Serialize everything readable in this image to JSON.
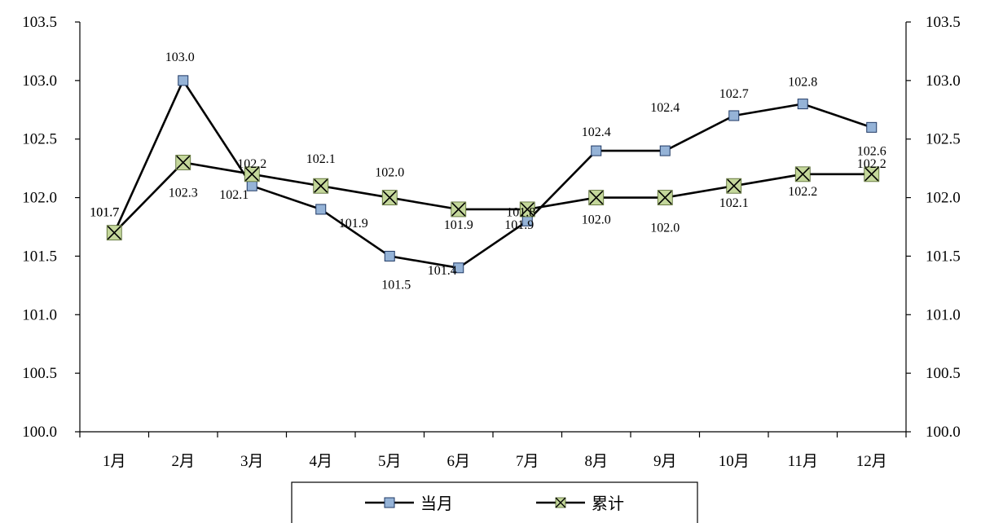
{
  "chart_data": {
    "type": "line",
    "categories": [
      "1月",
      "2月",
      "3月",
      "4月",
      "5月",
      "6月",
      "7月",
      "8月",
      "9月",
      "10月",
      "11月",
      "12月"
    ],
    "series": [
      {
        "name": "当月",
        "values": [
          101.7,
          103.0,
          102.1,
          101.9,
          101.5,
          101.4,
          101.8,
          102.4,
          102.4,
          102.7,
          102.8,
          102.6
        ],
        "labels": [
          "101.7",
          "103.0",
          "102.1",
          "101.9",
          "101.5",
          "101.4",
          "101.8",
          "102.4",
          "102.4",
          "102.7",
          "102.8",
          "102.6"
        ],
        "marker": "square",
        "marker_color": "#95b3d7",
        "line_color": "#000000"
      },
      {
        "name": "累计",
        "values": [
          101.7,
          102.3,
          102.2,
          102.1,
          102.0,
          101.9,
          101.9,
          102.0,
          102.0,
          102.1,
          102.2,
          102.2
        ],
        "labels": [
          "101.7",
          "102.3",
          "102.2",
          "102.1",
          "102.0",
          "101.9",
          "101.9",
          "102.0",
          "102.0",
          "102.1",
          "102.2",
          "102.2"
        ],
        "marker": "x-box",
        "marker_color": "#c4d79b",
        "line_color": "#000000"
      }
    ],
    "y_ticks": [
      "100.0",
      "100.5",
      "101.0",
      "101.5",
      "102.0",
      "102.5",
      "103.0",
      "103.5"
    ],
    "ylim": [
      100.0,
      103.5
    ],
    "y2_ticks": [
      "100.0",
      "100.5",
      "101.0",
      "101.5",
      "102.0",
      "102.5",
      "103.0",
      "103.5"
    ],
    "y2lim": [
      100.0,
      103.5
    ],
    "grid": false,
    "legend": "bottom-center"
  }
}
